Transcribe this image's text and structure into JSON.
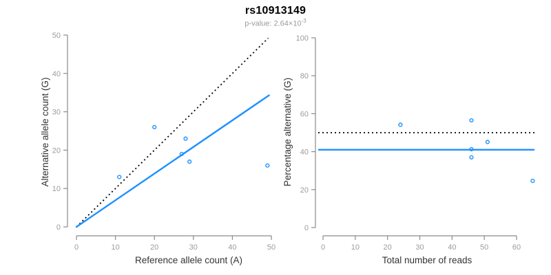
{
  "header": {
    "title": "rs10913149",
    "pvalue_prefix": "p-value: 2.64×10",
    "pvalue_exponent": "-3"
  },
  "colors": {
    "accent_blue": "#1E90FF",
    "axis_gray": "#8A8A8A",
    "tick_label_gray": "#9B9B9B",
    "axis_title_black": "#333333",
    "dotted_line_black": "#000000"
  },
  "chart_data": [
    {
      "type": "scatter",
      "panel": "left",
      "xlabel": "Reference allele count (A)",
      "ylabel": "Alternative allele count (G)",
      "xlim": [
        0,
        50
      ],
      "ylim": [
        0,
        50
      ],
      "xticks": [
        0,
        10,
        20,
        30,
        40,
        50
      ],
      "yticks": [
        0,
        10,
        20,
        30,
        40,
        50
      ],
      "grid": false,
      "legend": "none",
      "points": [
        {
          "x": 11,
          "y": 13
        },
        {
          "x": 20,
          "y": 26
        },
        {
          "x": 27,
          "y": 19
        },
        {
          "x": 28,
          "y": 23
        },
        {
          "x": 29,
          "y": 17
        },
        {
          "x": 49,
          "y": 16
        }
      ],
      "lines": [
        {
          "name": "identity-line",
          "style": "dotted",
          "color": "#000000",
          "from": {
            "x": 0,
            "y": 0
          },
          "to": {
            "x": 49.2,
            "y": 49.2
          }
        },
        {
          "name": "fit-line",
          "style": "solid",
          "color": "#1E90FF",
          "from": {
            "x": 0,
            "y": 0
          },
          "to": {
            "x": 49.4,
            "y": 34.3
          }
        }
      ]
    },
    {
      "type": "scatter",
      "panel": "right",
      "xlabel": "Total number of reads",
      "ylabel": "Percentage alternative (G)",
      "xlim": [
        0,
        60
      ],
      "ylim": [
        0,
        100
      ],
      "xticks": [
        0,
        10,
        20,
        30,
        40,
        50,
        60
      ],
      "yticks": [
        0,
        20,
        40,
        60,
        80,
        100
      ],
      "grid": false,
      "legend": "none",
      "points": [
        {
          "x": 24,
          "y": 54.2
        },
        {
          "x": 46,
          "y": 56.5
        },
        {
          "x": 46,
          "y": 41.3
        },
        {
          "x": 46,
          "y": 37.0
        },
        {
          "x": 51,
          "y": 45.1
        },
        {
          "x": 65,
          "y": 24.6
        }
      ],
      "hlines": [
        {
          "name": "expected-50pct-line",
          "style": "dotted",
          "color": "#000000",
          "y": 50
        },
        {
          "name": "observed-mean-line",
          "style": "solid",
          "color": "#1E90FF",
          "y": 41
        }
      ]
    }
  ]
}
